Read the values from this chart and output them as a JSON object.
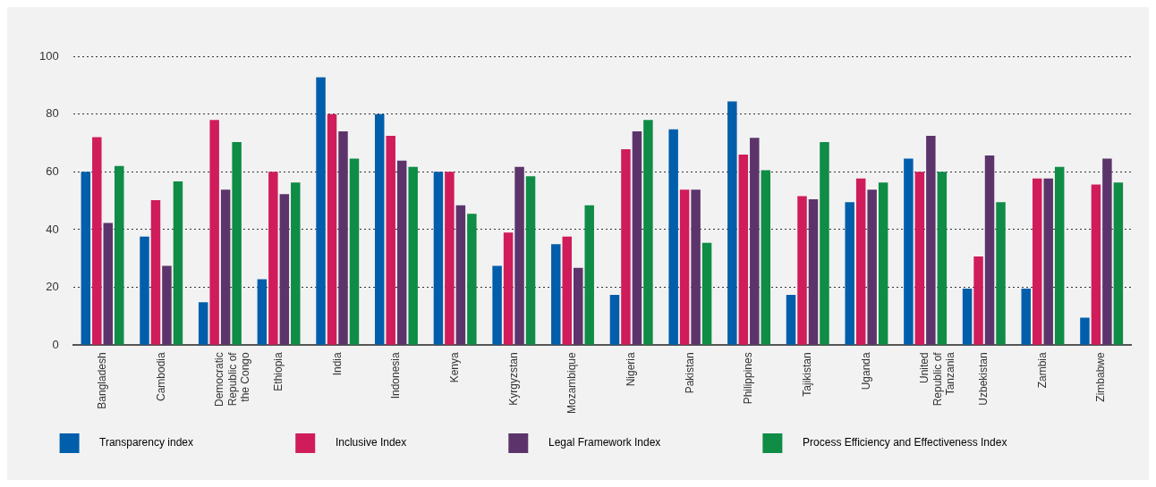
{
  "chart_data": {
    "type": "bar",
    "categories": [
      "Bangladesh",
      "Cambodia",
      "Democratic Republic of the Congo",
      "Ethiopia",
      "India",
      "Indonesia",
      "Kenya",
      "Kyrgyzstan",
      "Mozambique",
      "Nigeria",
      "Pakistan",
      "Philippines",
      "Tajikistan",
      "Uganda",
      "United Republic of Tanzania",
      "Uzbekistan",
      "Zambia",
      "Zimbabwe"
    ],
    "series": [
      {
        "name": "Transparency index",
        "color": "#005eaa",
        "values": [
          60,
          37.6,
          14.9,
          22.8,
          92.7,
          80,
          60,
          27.5,
          35,
          17.4,
          74.7,
          84.4,
          17.4,
          49.5,
          64.6,
          19.6,
          19.6,
          9.5
        ]
      },
      {
        "name": "Inclusive Index",
        "color": "#d01c5b",
        "values": [
          72,
          50.2,
          78,
          60,
          80,
          72.5,
          60,
          39,
          37.6,
          67.8,
          53.8,
          66,
          51.6,
          57.7,
          60,
          30.7,
          57.7,
          55.6
        ]
      },
      {
        "name": "Legal Framework Index",
        "color": "#5c346b",
        "values": [
          42.3,
          27.5,
          53.8,
          52.3,
          74,
          63.9,
          48.4,
          61.7,
          26.8,
          74,
          53.8,
          71.8,
          50.5,
          53.8,
          72.5,
          65.7,
          57.7,
          64.6
        ]
      },
      {
        "name": "Process Efficiency and Effectiveness Index",
        "color": "#0f8c46",
        "values": [
          62,
          56.7,
          70.3,
          56.3,
          64.6,
          61.7,
          45.5,
          58.5,
          48.4,
          78,
          35.4,
          60.6,
          70.3,
          56.3,
          60,
          49.5,
          61.7,
          56.3
        ]
      }
    ],
    "ylim": [
      0,
      100
    ],
    "yticks": [
      0,
      20,
      40,
      60,
      80,
      100
    ],
    "grid": "y",
    "legend": "bottom"
  }
}
